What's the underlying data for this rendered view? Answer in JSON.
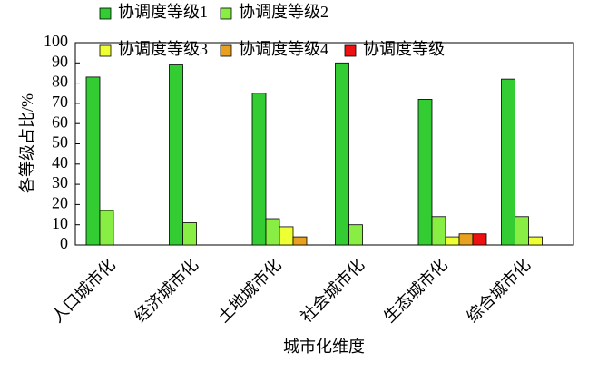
{
  "chart_data": {
    "type": "bar",
    "categories": [
      "人口城市化",
      "经济城市化",
      "土地城市化",
      "社会城市化",
      "生态城市化",
      "综合城市化"
    ],
    "series": [
      {
        "name": "协调度等级1",
        "color": "#33cc33",
        "values": [
          83,
          89,
          75,
          90,
          72,
          82
        ]
      },
      {
        "name": "协调度等级2",
        "color": "#88ee44",
        "values": [
          17,
          11,
          13,
          10,
          14,
          14
        ]
      },
      {
        "name": "协调度等级3",
        "color": "#eeff33",
        "values": [
          0,
          0,
          9,
          0,
          4,
          4
        ]
      },
      {
        "name": "协调度等级4",
        "color": "#e8a020",
        "values": [
          0,
          0,
          4,
          0,
          5.5,
          0
        ]
      },
      {
        "name": "协调度等级",
        "color": "#ee1111",
        "values": [
          0,
          0,
          0,
          0,
          5.5,
          0
        ]
      }
    ],
    "ylabel": "各等级占比/%",
    "xlabel": "城市化维度",
    "ylim": [
      0,
      100
    ],
    "yticks": [
      0,
      10,
      20,
      30,
      40,
      50,
      60,
      70,
      80,
      90,
      100
    ]
  }
}
